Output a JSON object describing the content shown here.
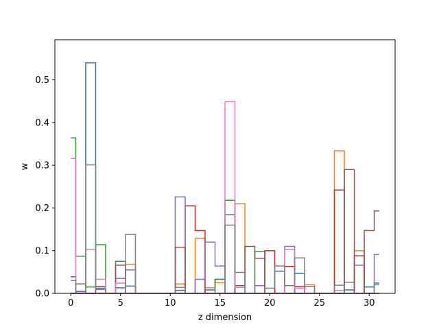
{
  "chart_data": {
    "type": "step",
    "xlabel": "z dimension",
    "ylabel": "w",
    "xlim": [
      -1.6,
      32.6
    ],
    "ylim": [
      0,
      0.594
    ],
    "xticks": [
      0,
      5,
      10,
      15,
      20,
      25,
      30
    ],
    "yticks": [
      0.0,
      0.1,
      0.2,
      0.3,
      0.4,
      0.5
    ],
    "x": [
      0,
      1,
      2,
      3,
      4,
      5,
      6,
      7,
      8,
      9,
      10,
      11,
      12,
      13,
      14,
      15,
      16,
      17,
      18,
      19,
      20,
      21,
      22,
      23,
      24,
      25,
      26,
      27,
      28,
      29,
      30,
      31
    ],
    "grid": false,
    "legend": "none",
    "series": [
      {
        "color": "#1f77b4",
        "values": [
          0.039,
          0.004,
          0.54,
          0.012,
          0.0,
          0.013,
          0.017,
          0.0,
          0.0,
          0.0,
          0.0,
          0.007,
          0.0,
          0.0,
          0.008,
          0.033,
          0.184,
          0.0,
          0.0,
          0.0,
          0.0,
          0.052,
          0.0,
          0.047,
          0.0,
          0.0,
          0.0,
          0.0,
          0.008,
          0.0,
          0.015,
          0.024
        ]
      },
      {
        "color": "#ff7f0e",
        "values": [
          0.0,
          0.0,
          0.0,
          0.0,
          0.0,
          0.0,
          0.068,
          0.0,
          0.0,
          0.0,
          0.0,
          0.022,
          0.0,
          0.129,
          0.013,
          0.025,
          0.0,
          0.21,
          0.0,
          0.0,
          0.0,
          0.0,
          0.0,
          0.0,
          0.02,
          0.0,
          0.0,
          0.334,
          0.0,
          0.1,
          0.0,
          0.0
        ]
      },
      {
        "color": "#2ca02c",
        "values": [
          0.364,
          0.087,
          0.015,
          0.114,
          0.0,
          0.075,
          0.0,
          0.0,
          0.0,
          0.0,
          0.0,
          0.0,
          0.0,
          0.0,
          0.0,
          0.033,
          0.218,
          0.0,
          0.0,
          0.098,
          0.0,
          0.0,
          0.0,
          0.0,
          0.0,
          0.0,
          0.0,
          0.0,
          0.0,
          0.0,
          0.0,
          0.0
        ]
      },
      {
        "color": "#d62728",
        "values": [
          0.0,
          0.0,
          0.0,
          0.016,
          0.0,
          0.0,
          0.0,
          0.0,
          0.0,
          0.0,
          0.0,
          0.0,
          0.205,
          0.147,
          0.0,
          0.0,
          0.0,
          0.0,
          0.0,
          0.0,
          0.1,
          0.0,
          0.063,
          0.016,
          0.0,
          0.0,
          0.0,
          0.242,
          0.0,
          0.088,
          0.0,
          0.0
        ]
      },
      {
        "color": "#9467bd",
        "values": [
          0.0,
          0.005,
          0.0,
          0.0,
          0.0,
          0.035,
          0.055,
          0.0,
          0.0,
          0.0,
          0.0,
          0.226,
          0.0,
          0.033,
          0.12,
          0.064,
          0.0,
          0.0,
          0.0,
          0.018,
          0.0,
          0.0,
          0.11,
          0.0,
          0.0,
          0.0,
          0.0,
          0.0,
          0.026,
          0.066,
          0.0,
          0.091
        ]
      },
      {
        "color": "#8c564b",
        "values": [
          0.0,
          0.022,
          0.0,
          0.0,
          0.0,
          0.066,
          0.0,
          0.0,
          0.0,
          0.0,
          0.0,
          0.108,
          0.0,
          0.0,
          0.0,
          0.0,
          0.0,
          0.018,
          0.11,
          0.082,
          0.0,
          0.0,
          0.0,
          0.0,
          0.0,
          0.0,
          0.0,
          0.0,
          0.29,
          0.0,
          0.147,
          0.193
        ]
      },
      {
        "color": "#e377c2",
        "values": [
          0.316,
          0.0,
          0.103,
          0.033,
          0.0,
          0.024,
          0.0,
          0.0,
          0.0,
          0.0,
          0.0,
          0.0,
          0.0,
          0.0,
          0.0,
          0.0,
          0.449,
          0.014,
          0.0,
          0.0,
          0.0,
          0.0,
          0.103,
          0.012,
          0.0,
          0.0,
          0.0,
          0.007,
          0.0,
          0.0,
          0.0,
          0.0
        ]
      },
      {
        "color": "#7f7f7f",
        "values": [
          0.03,
          0.0,
          0.301,
          0.009,
          0.0,
          0.0,
          0.138,
          0.0,
          0.0,
          0.0,
          0.0,
          0.014,
          0.0,
          0.0,
          0.0,
          0.0,
          0.16,
          0.049,
          0.0,
          0.0,
          0.012,
          0.064,
          0.018,
          0.083,
          0.016,
          0.0,
          0.0,
          0.019,
          0.0,
          0.0,
          0.0,
          0.02
        ]
      }
    ]
  }
}
